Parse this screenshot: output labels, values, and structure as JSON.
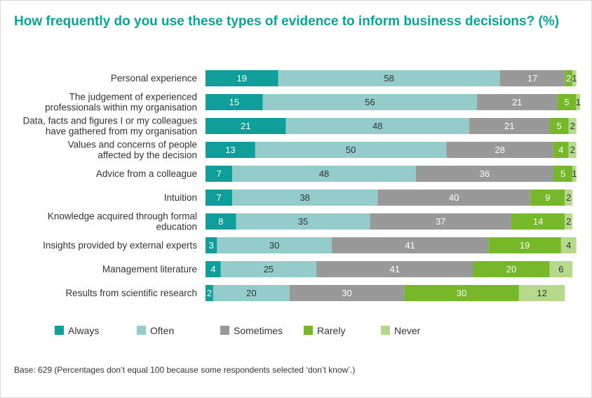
{
  "title": "How frequently do you use these types of evidence to inform business decisions? (%)",
  "footer": "Base: 629 (Percentages don’t equal 100 because some respondents selected ‘don’t know’.)",
  "chart_data": {
    "type": "bar",
    "orientation": "horizontal",
    "stacked": true,
    "categories": [
      [
        "Personal experience"
      ],
      [
        "The judgement of experienced",
        "professionals within my organisation"
      ],
      [
        "Data, facts and figures I or my colleagues",
        "have gathered from my organisation"
      ],
      [
        "Values and concerns of people",
        "affected by the decision"
      ],
      [
        "Advice from a colleague"
      ],
      [
        "Intuition"
      ],
      [
        "Knowledge acquired through formal",
        "education"
      ],
      [
        "Insights provided by external experts"
      ],
      [
        "Management literature"
      ],
      [
        "Results from scientific research"
      ]
    ],
    "series": [
      {
        "name": "Always",
        "color": "#0f9e99",
        "text_color": "#ffffff",
        "values": [
          19,
          15,
          21,
          13,
          7,
          7,
          8,
          3,
          4,
          2
        ]
      },
      {
        "name": "Often",
        "color": "#93cccb",
        "text_color": "#333333",
        "values": [
          58,
          56,
          48,
          50,
          48,
          38,
          35,
          30,
          25,
          20
        ]
      },
      {
        "name": "Sometimes",
        "color": "#999999",
        "text_color": "#ffffff",
        "values": [
          17,
          21,
          21,
          28,
          36,
          40,
          37,
          41,
          41,
          30
        ]
      },
      {
        "name": "Rarely",
        "color": "#76b82a",
        "text_color": "#ffffff",
        "values": [
          2,
          5,
          5,
          4,
          5,
          9,
          14,
          19,
          20,
          30
        ]
      },
      {
        "name": "Never",
        "color": "#b7d98b",
        "text_color": "#333333",
        "values": [
          1,
          1,
          2,
          2,
          1,
          2,
          2,
          4,
          6,
          12
        ]
      }
    ],
    "xlim": [
      0,
      100
    ],
    "legend_position": "bottom-left",
    "grid": false
  }
}
